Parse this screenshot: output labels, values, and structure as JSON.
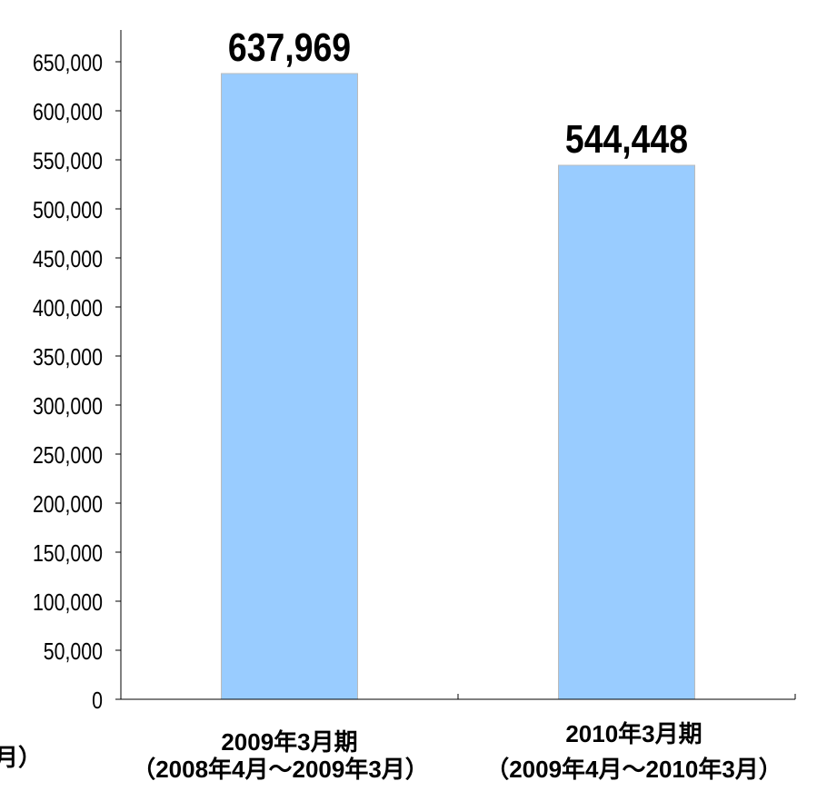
{
  "chart_data": {
    "type": "bar",
    "title": "",
    "xlabel": "",
    "ylabel": "",
    "ylim": [
      0,
      650000
    ],
    "yticks": [
      0,
      50000,
      100000,
      150000,
      200000,
      250000,
      300000,
      350000,
      400000,
      450000,
      500000,
      550000,
      600000,
      650000
    ],
    "ytick_labels": [
      "0",
      "50,000",
      "100,000",
      "150,000",
      "200,000",
      "250,000",
      "300,000",
      "350,000",
      "400,000",
      "450,000",
      "500,000",
      "550,000",
      "600,000",
      "650,000"
    ],
    "categories": [
      {
        "line1": "2009年3月期",
        "line2": "（2008年4月～2009年3月）"
      },
      {
        "line1": "2010年3月期",
        "line2": "（2009年4月～2010年3月）"
      }
    ],
    "values": [
      637969,
      544448
    ],
    "data_labels": [
      "637,969",
      "544,448"
    ],
    "clipped_fragment": "月）",
    "grid": false,
    "legend": "none",
    "bar_color": "#99ccff",
    "bar_edge_color": "#bbbbbb",
    "axis_color": "#000000"
  }
}
